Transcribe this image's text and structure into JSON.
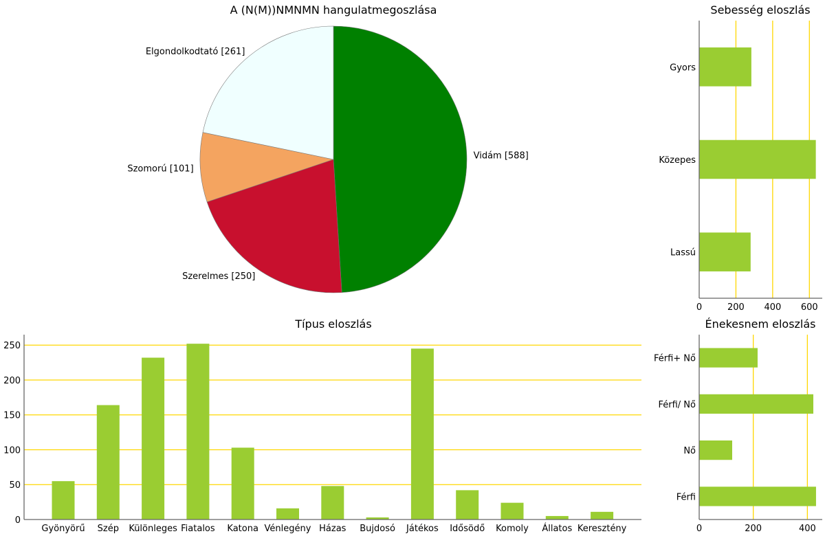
{
  "colors": {
    "bar": "#9acd32",
    "grid": "#ffd700",
    "axis": "#666666"
  },
  "chart_data": [
    {
      "type": "pie",
      "title": "A (N(M))NMNMN hangulatmegoszlása",
      "slices": [
        {
          "label": "Vidám [588]",
          "value": 588,
          "color": "#008000"
        },
        {
          "label": "Szerelmes [250]",
          "value": 250,
          "color": "#c8102e"
        },
        {
          "label": "Szomorú [101]",
          "value": 101,
          "color": "#f4a460"
        },
        {
          "label": "Elgondolkodtató [261]",
          "value": 261,
          "color": "#f0ffff"
        }
      ],
      "start": "top",
      "direction": "clockwise"
    },
    {
      "type": "bar",
      "orientation": "horizontal",
      "title": "Sebesség eloszlás",
      "categories": [
        "Gyors",
        "Közepes",
        "Lassú"
      ],
      "values": [
        284,
        635,
        280
      ],
      "xlim": [
        0,
        670
      ],
      "xticks": [
        "0",
        "200",
        "400",
        "600"
      ],
      "grid": "x"
    },
    {
      "type": "bar",
      "orientation": "vertical",
      "title": "Típus eloszlás",
      "categories": [
        "Gyönyörű",
        "Szép",
        "Különleges",
        "Fiatalos",
        "Katona",
        "Vénlegény",
        "Házas",
        "Bujdosó",
        "Játékos",
        "Idősödő",
        "Komoly",
        "Állatos",
        "Keresztény"
      ],
      "values": [
        55,
        164,
        232,
        252,
        103,
        16,
        48,
        3,
        245,
        42,
        24,
        5,
        11
      ],
      "ylim": [
        0,
        265
      ],
      "yticks": [
        "0",
        "50",
        "100",
        "150",
        "200",
        "250"
      ],
      "grid": "y"
    },
    {
      "type": "bar",
      "orientation": "horizontal",
      "title": "Énekesnem eloszlás",
      "categories": [
        "Férfi+ Nő",
        "Férfi/ Nő",
        "Nő",
        "Férfi"
      ],
      "values": [
        216,
        422,
        122,
        432
      ],
      "xlim": [
        0,
        455
      ],
      "xticks": [
        "0",
        "200",
        "400"
      ],
      "grid": "x"
    }
  ]
}
